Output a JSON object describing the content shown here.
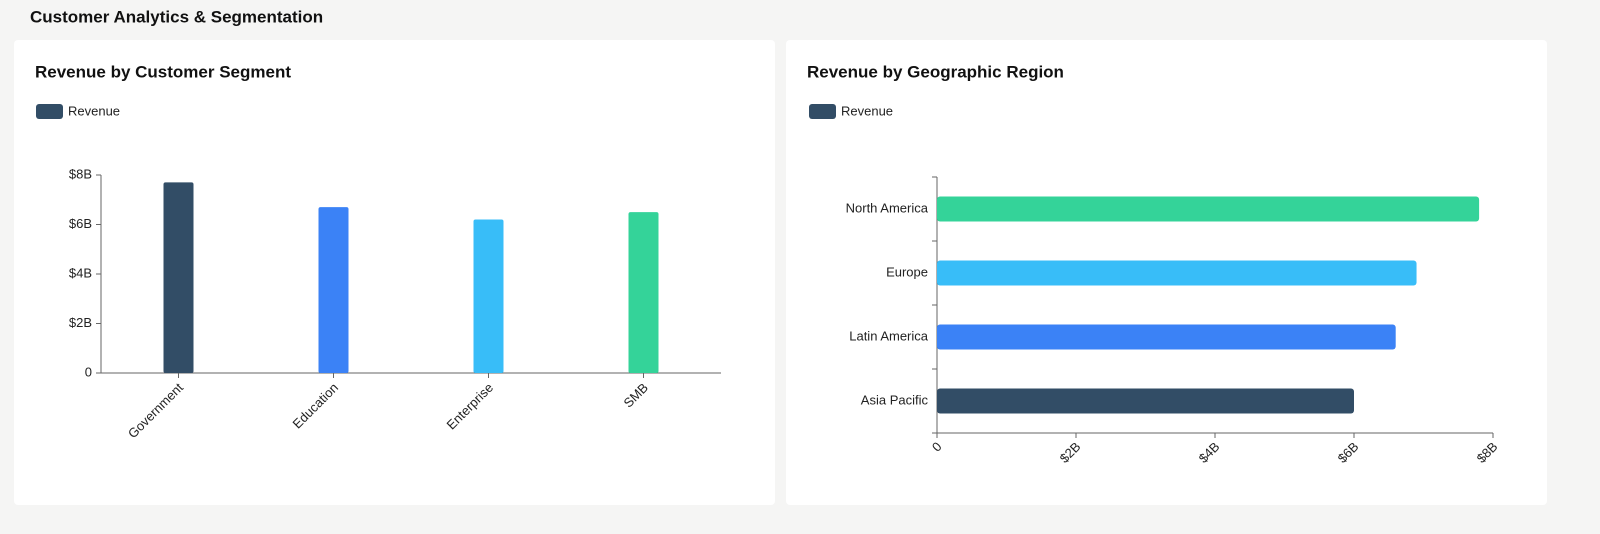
{
  "title": "Customer Analytics & Segmentation",
  "chart_data": [
    {
      "type": "bar",
      "orientation": "vertical",
      "title": "Revenue by Customer Segment",
      "categories": [
        "Government",
        "Education",
        "Enterprise",
        "SMB"
      ],
      "series": [
        {
          "name": "Revenue",
          "color": "#324d66",
          "colors": [
            "#324d66",
            "#3b82f6",
            "#38bdf8",
            "#34d399"
          ],
          "values": [
            7700000000,
            6700000000,
            6200000000,
            6500000000
          ]
        }
      ],
      "ylim": [
        0,
        8000000000
      ],
      "yticks": [
        0,
        {
          "value": 2000000000,
          "label": "$2B"
        },
        {
          "value": 4000000000,
          "label": "$4B"
        },
        {
          "value": 6000000000,
          "label": "$6B"
        },
        {
          "value": 8000000000,
          "label": "$8B"
        }
      ],
      "grid": false
    },
    {
      "type": "bar",
      "orientation": "horizontal",
      "title": "Revenue by Geographic Region",
      "categories": [
        "North America",
        "Europe",
        "Latin America",
        "Asia Pacific"
      ],
      "series": [
        {
          "name": "Revenue",
          "color": "#324d66",
          "colors": [
            "#34d399",
            "#38bdf8",
            "#3b82f6",
            "#324d66"
          ],
          "values": [
            7800000000,
            6900000000,
            6600000000,
            6000000000
          ]
        }
      ],
      "xlim": [
        0,
        8000000000
      ],
      "xticks": [
        0,
        {
          "value": 2000000000,
          "label": "$2B"
        },
        {
          "value": 4000000000,
          "label": "$4B"
        },
        {
          "value": 6000000000,
          "label": "$6B"
        },
        {
          "value": 8000000000,
          "label": "$8B"
        }
      ],
      "grid": false
    }
  ]
}
